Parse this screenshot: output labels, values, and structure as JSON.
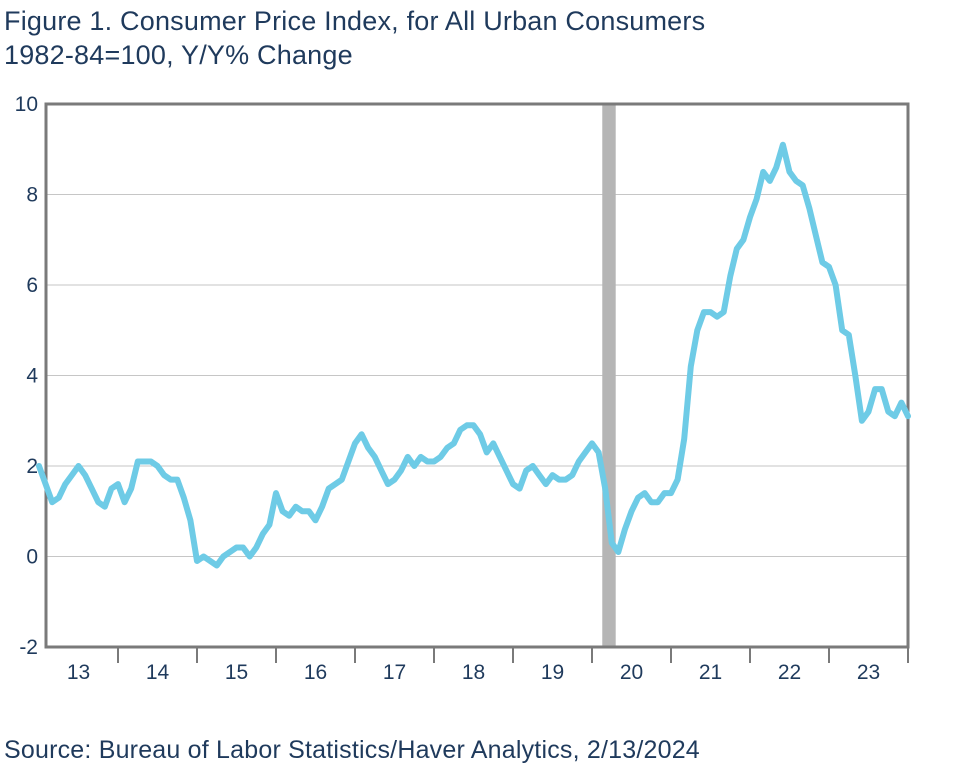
{
  "title_line1": "Figure 1. Consumer Price Index, for All Urban Consumers",
  "title_line2": "1982-84=100, Y/Y% Change",
  "source": "Source: Bureau of Labor Statistics/Haver Analytics, 2/13/2024",
  "chart_data": {
    "type": "line",
    "title": "Figure 1. Consumer Price Index, for All Urban Consumers",
    "subtitle": "1982-84=100, Y/Y% Change",
    "ylim": [
      -2,
      10
    ],
    "yticks": [
      "-2",
      "0",
      "2",
      "4",
      "6",
      "8",
      "10"
    ],
    "xticks": [
      "13",
      "14",
      "15",
      "16",
      "17",
      "18",
      "19",
      "20",
      "21",
      "22",
      "23"
    ],
    "x_range_years": [
      2013,
      2024
    ],
    "grid": true,
    "recession_shading": {
      "start": 2020.13,
      "end": 2020.3
    },
    "line_color": "#6ecbe6",
    "recession_color": "#b5b5b5",
    "series": [
      {
        "start_year": 2013,
        "frequency": "monthly",
        "values": [
          2.0,
          1.6,
          1.2,
          1.3,
          1.6,
          1.8,
          2.0,
          1.8,
          1.5,
          1.2,
          1.1,
          1.5,
          1.6,
          1.2,
          1.5,
          2.1,
          2.1,
          2.1,
          2.0,
          1.8,
          1.7,
          1.7,
          1.3,
          0.8,
          -0.1,
          0.0,
          -0.1,
          -0.2,
          0.0,
          0.1,
          0.2,
          0.2,
          0.0,
          0.2,
          0.5,
          0.7,
          1.4,
          1.0,
          0.9,
          1.1,
          1.0,
          1.0,
          0.8,
          1.1,
          1.5,
          1.6,
          1.7,
          2.1,
          2.5,
          2.7,
          2.4,
          2.2,
          1.9,
          1.6,
          1.7,
          1.9,
          2.2,
          2.0,
          2.2,
          2.1,
          2.1,
          2.2,
          2.4,
          2.5,
          2.8,
          2.9,
          2.9,
          2.7,
          2.3,
          2.5,
          2.2,
          1.9,
          1.6,
          1.5,
          1.9,
          2.0,
          1.8,
          1.6,
          1.8,
          1.7,
          1.7,
          1.8,
          2.1,
          2.3,
          2.5,
          2.3,
          1.5,
          0.3,
          0.1,
          0.6,
          1.0,
          1.3,
          1.4,
          1.2,
          1.2,
          1.4,
          1.4,
          1.7,
          2.6,
          4.2,
          5.0,
          5.4,
          5.4,
          5.3,
          5.4,
          6.2,
          6.8,
          7.0,
          7.5,
          7.9,
          8.5,
          8.3,
          8.6,
          9.1,
          8.5,
          8.3,
          8.2,
          7.7,
          7.1,
          6.5,
          6.4,
          6.0,
          5.0,
          4.9,
          4.0,
          3.0,
          3.2,
          3.7,
          3.7,
          3.2,
          3.1,
          3.4,
          3.1
        ]
      }
    ]
  }
}
